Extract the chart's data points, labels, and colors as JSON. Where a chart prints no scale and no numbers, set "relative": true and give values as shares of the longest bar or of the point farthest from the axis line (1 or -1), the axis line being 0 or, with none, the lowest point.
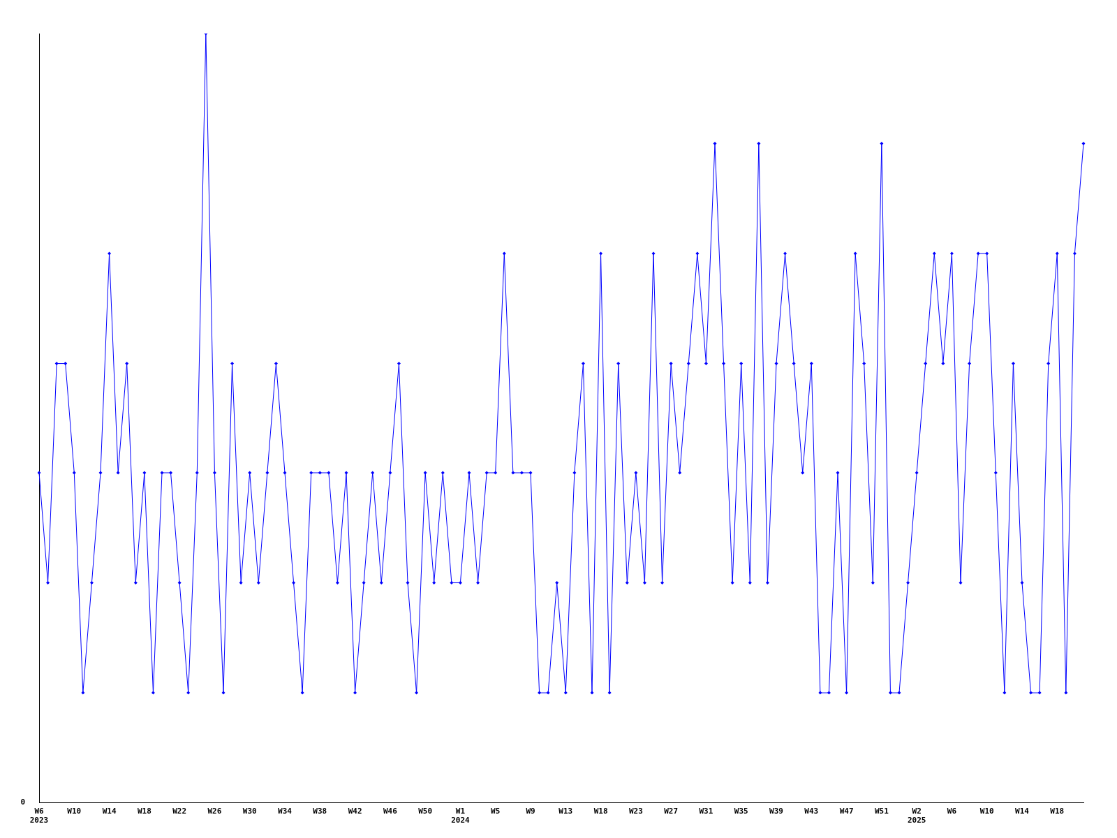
{
  "chart_data": {
    "type": "line",
    "relative": true,
    "marker": "diamond",
    "line_style": "solid",
    "grid": false,
    "legend": false,
    "annotations": [
      "0"
    ],
    "categories": [
      "W6\n2023",
      null,
      null,
      null,
      "W10",
      null,
      null,
      null,
      "W14",
      null,
      null,
      null,
      "W18",
      null,
      null,
      null,
      "W22",
      null,
      null,
      null,
      "W26",
      null,
      null,
      null,
      "W30",
      null,
      null,
      null,
      "W34",
      null,
      null,
      null,
      "W38",
      null,
      null,
      null,
      "W42",
      null,
      null,
      null,
      "W46",
      null,
      null,
      null,
      "W50",
      null,
      null,
      null,
      "W1\n2024",
      null,
      null,
      null,
      "W5",
      null,
      null,
      null,
      "W9",
      null,
      null,
      null,
      "W13",
      null,
      null,
      null,
      "W18",
      null,
      null,
      null,
      "W23",
      null,
      null,
      null,
      "W27",
      null,
      null,
      null,
      "W31",
      null,
      null,
      null,
      "W35",
      null,
      null,
      null,
      "W39",
      null,
      null,
      null,
      "W43",
      null,
      null,
      null,
      "W47",
      null,
      null,
      null,
      "W51",
      null,
      null,
      null,
      "W2\n2025",
      null,
      null,
      null,
      "W6",
      null,
      null,
      null,
      "W10",
      null,
      null,
      null,
      "W14",
      null,
      null,
      null,
      "W18",
      null,
      null,
      null
    ],
    "series": [
      {
        "color": "#0000ff",
        "values": [
          0.429,
          0.286,
          0.571,
          0.571,
          0.429,
          0.143,
          0.286,
          0.429,
          0.714,
          0.429,
          0.571,
          0.286,
          0.429,
          0.143,
          0.429,
          0.429,
          0.286,
          0.143,
          0.429,
          1,
          0.429,
          0.143,
          0.571,
          0.286,
          0.429,
          0.286,
          0.429,
          0.571,
          0.429,
          0.286,
          0.143,
          0.429,
          0.429,
          0.429,
          0.286,
          0.429,
          0.143,
          0.286,
          0.429,
          0.286,
          0.429,
          0.571,
          0.286,
          0.143,
          0.429,
          0.286,
          0.429,
          0.286,
          0.286,
          0.429,
          0.286,
          0.429,
          0.429,
          0.714,
          0.429,
          0.429,
          0.429,
          0.143,
          0.143,
          0.286,
          0.143,
          0.429,
          0.571,
          0.143,
          0.714,
          0.143,
          0.571,
          0.286,
          0.429,
          0.286,
          0.714,
          0.286,
          0.571,
          0.429,
          0.571,
          0.714,
          0.571,
          0.857,
          0.571,
          0.286,
          0.571,
          0.286,
          0.857,
          0.286,
          0.571,
          0.714,
          0.571,
          0.429,
          0.571,
          0.143,
          0.143,
          0.429,
          0.143,
          0.714,
          0.571,
          0.286,
          0.857,
          0.143,
          0.143,
          0.286,
          0.429,
          0.571,
          0.714,
          0.571,
          0.714,
          0.286,
          0.571,
          0.714,
          0.714,
          0.429,
          0.143,
          0.571,
          0.286,
          0.143,
          0.143,
          0.571,
          0.714,
          0.143,
          0.714,
          0.857
        ]
      }
    ]
  }
}
